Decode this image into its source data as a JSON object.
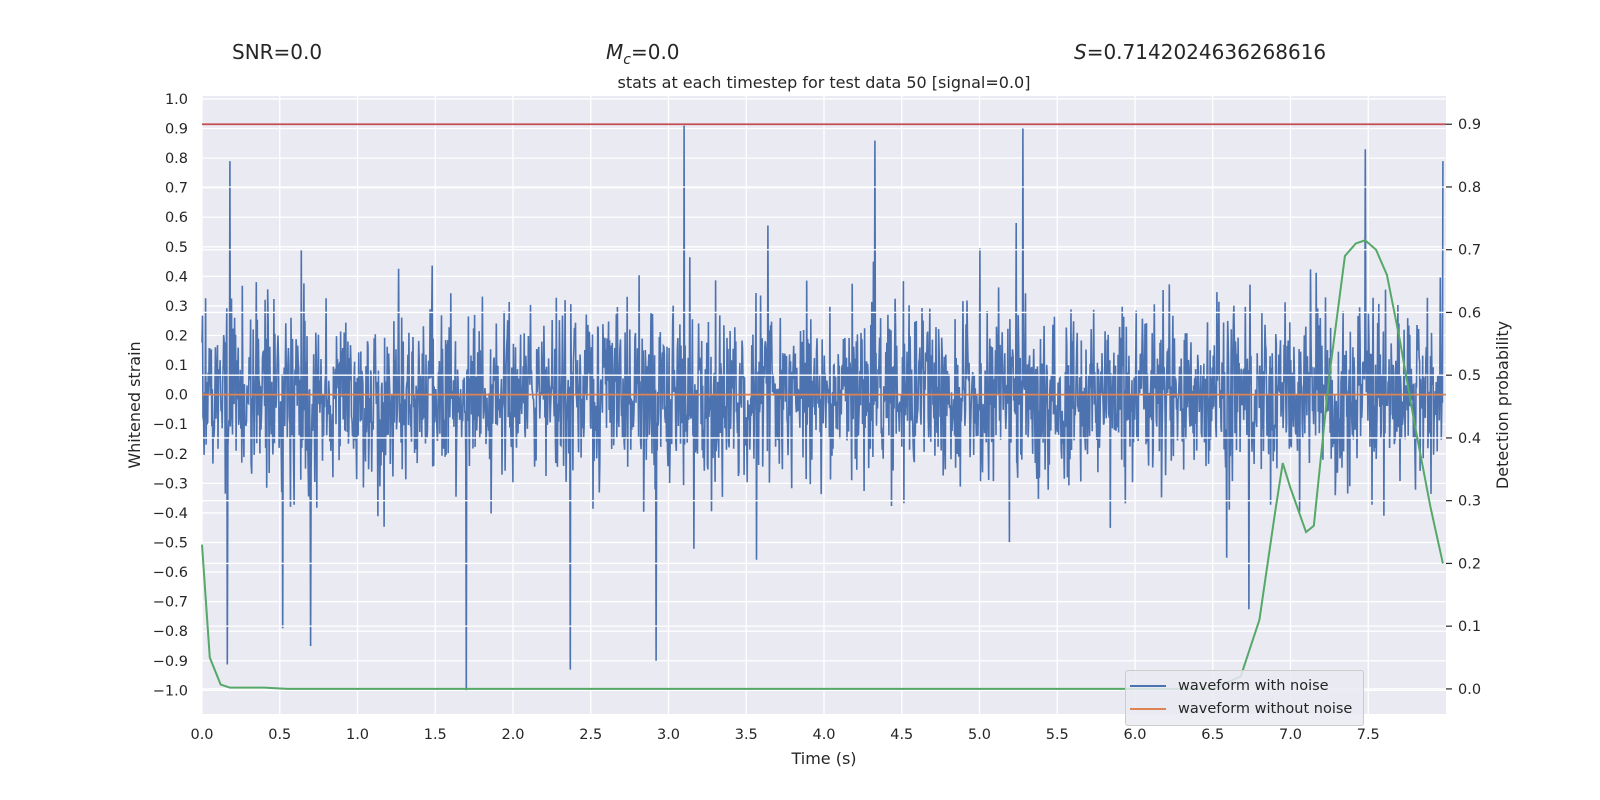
{
  "header": {
    "snr_text": "SNR=0.0",
    "mc_symbol": "M",
    "mc_sub": "c",
    "mc_value": "=0.0",
    "s_symbol": "S",
    "s_value": "=0.7142024636268616"
  },
  "chart_data": {
    "type": "line",
    "title": "stats at each timestep for test data 50 [signal=0.0]",
    "xlabel": "Time (s)",
    "ylabel_left": "Whitened strain",
    "ylabel_right": "Detection probability",
    "xlim": [
      0.0,
      8.0
    ],
    "ylim_left": [
      -1.08,
      1.01
    ],
    "ylim_right": [
      -0.04,
      0.945
    ],
    "xticks": [
      "0.0",
      "0.5",
      "1.0",
      "1.5",
      "2.0",
      "2.5",
      "3.0",
      "3.5",
      "4.0",
      "4.5",
      "5.0",
      "5.5",
      "6.0",
      "6.5",
      "7.0",
      "7.5"
    ],
    "yticks_left": [
      "1.0",
      "0.9",
      "0.8",
      "0.7",
      "0.6",
      "0.5",
      "0.4",
      "0.3",
      "0.2",
      "0.1",
      "0.0",
      "-0.1",
      "-0.2",
      "-0.3",
      "-0.4",
      "-0.5",
      "-0.6",
      "-0.7",
      "-0.8",
      "-0.9",
      "-1.0"
    ],
    "yticks_right": [
      "0.9",
      "0.8",
      "0.7",
      "0.6",
      "0.5",
      "0.4",
      "0.3",
      "0.2",
      "0.1",
      "0.0"
    ],
    "grid": true,
    "legend_position": "bottom-right",
    "series": [
      {
        "name": "waveform with noise",
        "axis": "left",
        "color": "#4c72b0",
        "style": "dense noise, roughly between -0.6 and 0.6 with spikes",
        "notable_peaks": [
          {
            "x": 0.18,
            "y": 0.79
          },
          {
            "x": 3.1,
            "y": 0.91
          },
          {
            "x": 5.28,
            "y": 0.9
          },
          {
            "x": 7.48,
            "y": 0.83
          },
          {
            "x": 7.98,
            "y": 0.79
          },
          {
            "x": 1.7,
            "y": -1.0
          },
          {
            "x": 2.37,
            "y": -0.93
          },
          {
            "x": 2.92,
            "y": -0.9
          },
          {
            "x": 0.7,
            "y": -0.85
          },
          {
            "x": 0.52,
            "y": -0.79
          }
        ]
      },
      {
        "name": "waveform without noise",
        "axis": "left",
        "color": "#dd8452",
        "x": [
          0.0,
          8.0
        ],
        "y": [
          0.0,
          0.0
        ]
      },
      {
        "name": "",
        "axis": "right",
        "color": "#55a868",
        "x": [
          0.0,
          0.05,
          0.12,
          0.18,
          0.3,
          0.4,
          0.55,
          0.7,
          1.0,
          2.0,
          3.0,
          4.0,
          5.0,
          6.0,
          6.5,
          6.68,
          6.8,
          6.9,
          6.95,
          7.0,
          7.1,
          7.15,
          7.25,
          7.35,
          7.42,
          7.48,
          7.55,
          7.62,
          7.7,
          7.8,
          7.9,
          7.98
        ],
        "y": [
          0.23,
          0.05,
          0.007,
          0.002,
          0.002,
          0.002,
          0.0,
          0.0,
          0.0,
          0.0,
          0.0,
          0.0,
          0.0,
          0.0,
          0.0,
          0.02,
          0.11,
          0.28,
          0.36,
          0.32,
          0.25,
          0.26,
          0.5,
          0.69,
          0.71,
          0.715,
          0.7,
          0.66,
          0.56,
          0.42,
          0.29,
          0.2
        ]
      },
      {
        "name": "",
        "axis": "right",
        "color": "#c44e52",
        "x": [
          0.0,
          8.0
        ],
        "y": [
          0.9,
          0.9
        ]
      }
    ]
  }
}
